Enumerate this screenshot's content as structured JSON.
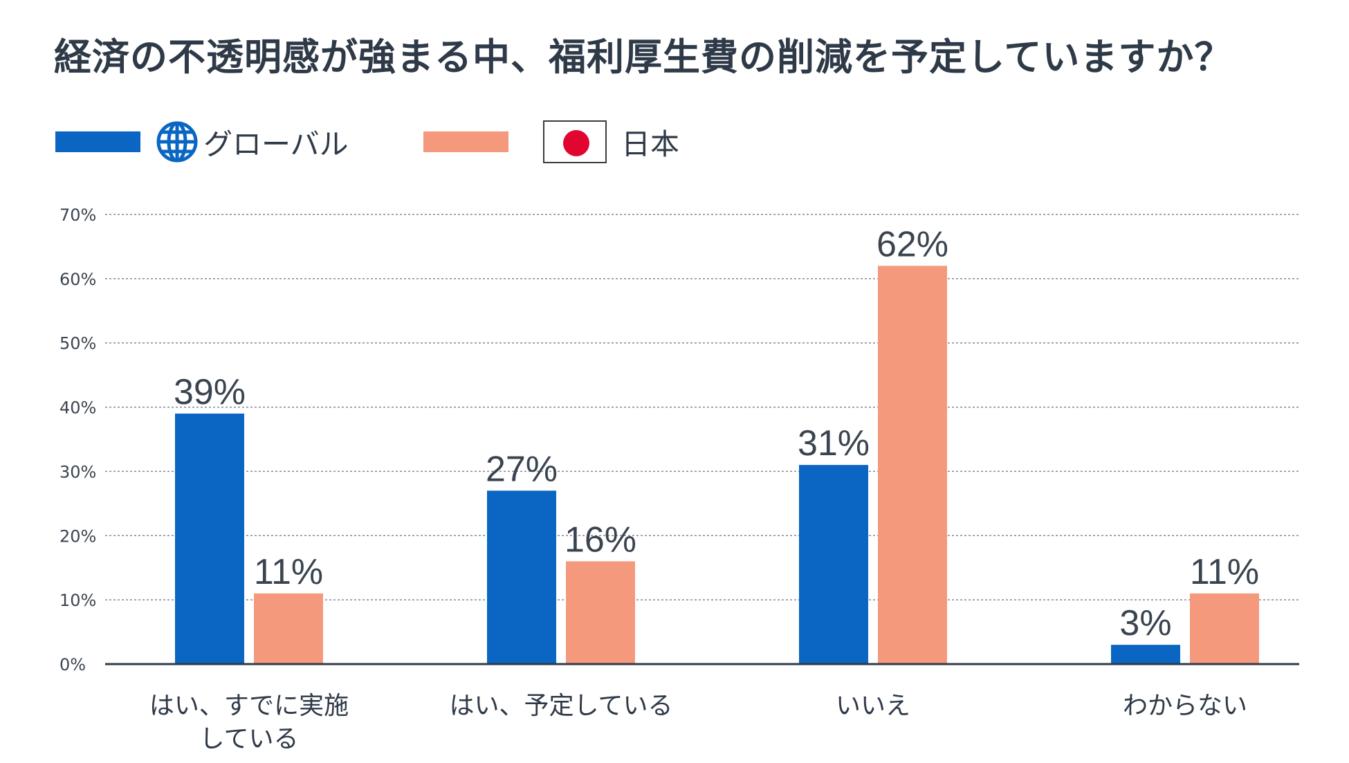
{
  "title": "経済の不透明感が強まる中、福利厚生費の削減を予定していますか？",
  "legend": {
    "global_label": "グローバル",
    "global_icon": "globe-icon",
    "japan_label": "日本",
    "japan_icon": "japan-flag-icon"
  },
  "colors": {
    "global": "#0a66c2",
    "japan": "#f4997c",
    "grid": "#7f8a96",
    "axis": "#2f3a48",
    "text": "#2f3a48"
  },
  "chart_data": {
    "type": "bar",
    "title": "経済の不透明感が強まる中、福利厚生費の削減を予定していますか？",
    "categories": [
      "はい、すでに実施している",
      "はい、予定している",
      "いいえ",
      "わからない"
    ],
    "category_lines": [
      [
        "はい、すでに実施",
        "している"
      ],
      [
        "はい、予定している"
      ],
      [
        "いいえ"
      ],
      [
        "わからない"
      ]
    ],
    "series": [
      {
        "name": "グローバル",
        "values": [
          39,
          27,
          31,
          3
        ],
        "labels": [
          "39%",
          "27%",
          "31%",
          "3%"
        ]
      },
      {
        "name": "日本",
        "values": [
          11,
          16,
          62,
          11
        ],
        "labels": [
          "11%",
          "16%",
          "62%",
          "11%"
        ]
      }
    ],
    "yticks": [
      "0%",
      "10%",
      "20%",
      "30%",
      "40%",
      "50%",
      "60%",
      "70%"
    ],
    "ylim": [
      0,
      70
    ],
    "xlabel": "",
    "ylabel": "",
    "grid": true,
    "legend_position": "top-left"
  }
}
